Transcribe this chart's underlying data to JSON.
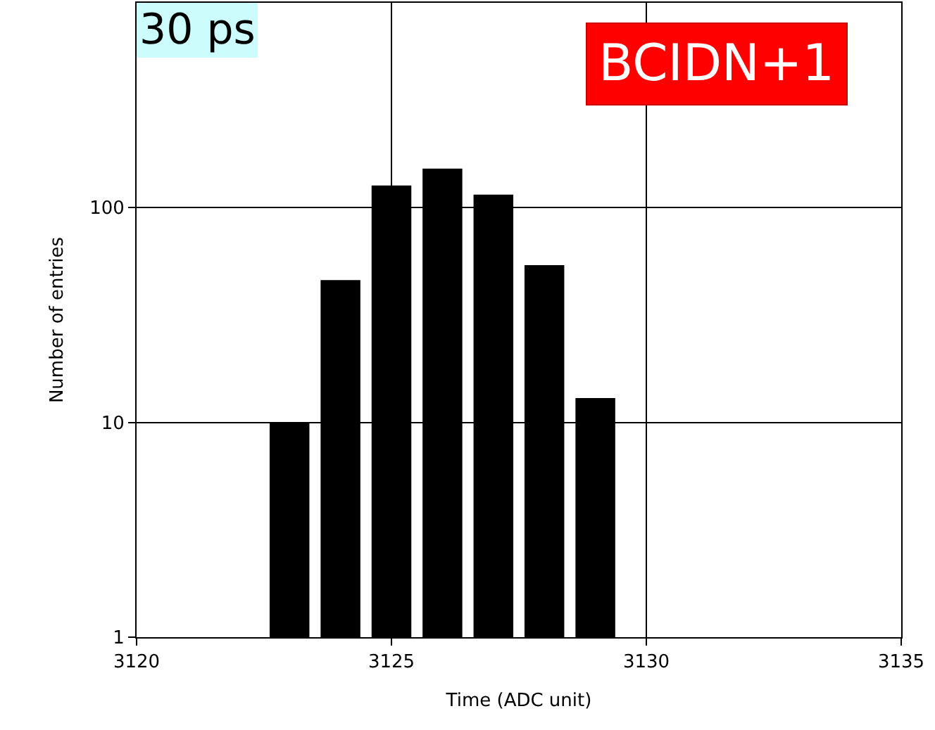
{
  "chart_data": {
    "type": "bar",
    "x": [
      3122,
      3123,
      3124,
      3125,
      3126,
      3127,
      3128,
      3129,
      3134
    ],
    "values": [
      1,
      10,
      46,
      127,
      152,
      115,
      54,
      13,
      1
    ],
    "color": "#000000",
    "xlabel": "Time (ADC unit)",
    "ylabel": "Number of entries",
    "xlim": [
      3120,
      3135
    ],
    "xticks": [
      3120,
      3125,
      3130,
      3135
    ],
    "ylim": [
      1,
      900
    ],
    "yticks": [
      1,
      10,
      100
    ],
    "log": "y",
    "grid": true,
    "annotations": [
      "30 ps",
      "BCIDN+1"
    ]
  }
}
